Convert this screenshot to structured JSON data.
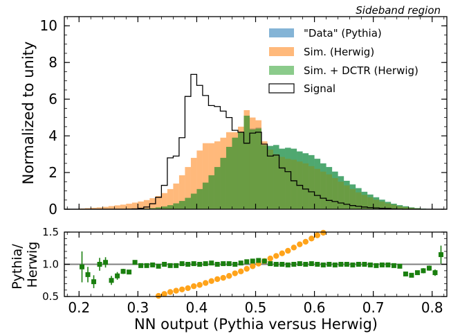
{
  "chart_data": [
    {
      "type": "bar",
      "panel": "main",
      "annotation": "Sideband region",
      "xlabel": "",
      "ylabel": "Normalized to unity",
      "xlim": [
        0.175,
        0.825
      ],
      "ylim": [
        0,
        10.5
      ],
      "bin_width": 0.01,
      "x_ticks": [
        "0.2",
        "0.3",
        "0.4",
        "0.5",
        "0.6",
        "0.7",
        "0.8"
      ],
      "y_ticks": [
        "0",
        "2",
        "4",
        "6",
        "8",
        "10"
      ],
      "legend_position": "top-right",
      "bin_left_edges": [
        0.17,
        0.18,
        0.19,
        0.2,
        0.21,
        0.22,
        0.23,
        0.24,
        0.25,
        0.26,
        0.27,
        0.28,
        0.29,
        0.3,
        0.31,
        0.32,
        0.33,
        0.34,
        0.35,
        0.36,
        0.37,
        0.38,
        0.39,
        0.4,
        0.41,
        0.42,
        0.43,
        0.44,
        0.45,
        0.46,
        0.47,
        0.48,
        0.49,
        0.5,
        0.51,
        0.52,
        0.53,
        0.54,
        0.55,
        0.56,
        0.57,
        0.58,
        0.59,
        0.6,
        0.61,
        0.62,
        0.63,
        0.64,
        0.65,
        0.66,
        0.67,
        0.68,
        0.69,
        0.7,
        0.71,
        0.72,
        0.73,
        0.74,
        0.75,
        0.76,
        0.77,
        0.78,
        0.79,
        0.8,
        0.81
      ],
      "series": [
        {
          "name": "\"Data\" (Pythia)",
          "style": "filled",
          "color": "#1f77b4",
          "values": [
            0,
            0,
            0,
            0,
            0,
            0,
            0,
            0,
            0,
            0,
            0,
            0,
            0.01,
            0.02,
            0.04,
            0.06,
            0.1,
            0.15,
            0.22,
            0.32,
            0.45,
            0.62,
            0.85,
            1.1,
            1.45,
            1.85,
            2.3,
            2.8,
            3.4,
            3.9,
            4.2,
            5.1,
            4.4,
            4.45,
            3.5,
            3.45,
            3.5,
            3.3,
            3.35,
            3.3,
            3.15,
            3.05,
            2.95,
            2.75,
            2.5,
            2.3,
            2.05,
            1.8,
            1.55,
            1.35,
            1.15,
            0.95,
            0.8,
            0.65,
            0.52,
            0.4,
            0.3,
            0.22,
            0.16,
            0.1,
            0.06,
            0.03,
            0.01,
            0,
            0
          ]
        },
        {
          "name": "Sim. (Herwig)",
          "style": "filled",
          "color": "#ff7f0e",
          "values": [
            0,
            0,
            0.02,
            0.04,
            0.06,
            0.08,
            0.1,
            0.13,
            0.17,
            0.21,
            0.25,
            0.3,
            0.36,
            0.42,
            0.5,
            0.6,
            0.72,
            0.88,
            1.1,
            1.4,
            1.85,
            2.3,
            2.8,
            3.2,
            3.6,
            3.6,
            3.7,
            3.9,
            4.2,
            4.2,
            4.5,
            5.4,
            5.0,
            4.85,
            3.7,
            3.25,
            3.0,
            2.85,
            2.75,
            2.7,
            2.6,
            2.5,
            2.35,
            2.2,
            2.05,
            1.9,
            1.7,
            1.5,
            1.3,
            1.1,
            0.92,
            0.78,
            0.65,
            0.52,
            0.42,
            0.32,
            0.24,
            0.17,
            0.12,
            0.08,
            0.05,
            0.02,
            0.01,
            0,
            0
          ]
        },
        {
          "name": "Sim. + DCTR (Herwig)",
          "style": "filled",
          "color": "#2ca02c",
          "values": [
            0,
            0,
            0,
            0,
            0,
            0,
            0,
            0,
            0,
            0,
            0,
            0,
            0.01,
            0.02,
            0.04,
            0.06,
            0.1,
            0.15,
            0.22,
            0.32,
            0.45,
            0.62,
            0.85,
            1.1,
            1.45,
            1.85,
            2.3,
            2.8,
            3.4,
            3.9,
            4.2,
            5.1,
            4.35,
            4.4,
            3.5,
            3.45,
            3.5,
            3.3,
            3.35,
            3.3,
            3.15,
            3.05,
            2.95,
            2.75,
            2.5,
            2.3,
            2.05,
            1.8,
            1.55,
            1.35,
            1.15,
            0.95,
            0.8,
            0.65,
            0.52,
            0.4,
            0.3,
            0.22,
            0.16,
            0.1,
            0.06,
            0.03,
            0.01,
            0,
            0
          ]
        },
        {
          "name": "Signal",
          "style": "step",
          "color": "#000000",
          "values": [
            0,
            0,
            0,
            0,
            0,
            0,
            0,
            0,
            0,
            0,
            0,
            0.01,
            0.02,
            0.05,
            0.12,
            0.3,
            0.65,
            1.3,
            2.8,
            2.9,
            3.9,
            6.15,
            7.35,
            6.75,
            6.2,
            5.65,
            5.6,
            5.35,
            5.0,
            4.3,
            4.2,
            3.6,
            4.15,
            4.2,
            3.55,
            2.9,
            2.95,
            2.25,
            2.05,
            1.55,
            1.3,
            1.1,
            0.95,
            0.75,
            0.6,
            0.48,
            0.42,
            0.34,
            0.27,
            0.2,
            0.16,
            0.12,
            0.09,
            0.07,
            0.05,
            0.04,
            0.02,
            0.01,
            0,
            0,
            0,
            0,
            0,
            0,
            0
          ]
        }
      ]
    },
    {
      "type": "scatter",
      "panel": "ratio",
      "xlabel": "NN output (Pythia versus Herwig)",
      "ylabel": "Pythia/\nHerwig",
      "xlim": [
        0.175,
        0.825
      ],
      "ylim": [
        0.5,
        1.5
      ],
      "reference_line": 1.0,
      "x_ticks": [
        "0.2",
        "0.3",
        "0.4",
        "0.5",
        "0.6",
        "0.7",
        "0.8"
      ],
      "y_ticks": [
        "0.5",
        "1.0",
        "1.5"
      ],
      "series": [
        {
          "name": "",
          "marker": "square",
          "color": "#1a7f0f",
          "points": [
            [
              0.205,
              0.96,
              0.24
            ],
            [
              0.215,
              0.84,
              0.12
            ],
            [
              0.225,
              0.73,
              0.1
            ],
            [
              0.235,
              1.0,
              0.1
            ],
            [
              0.245,
              1.03,
              0.08
            ],
            [
              0.255,
              0.75,
              0.07
            ],
            [
              0.265,
              0.82,
              0.06
            ],
            [
              0.275,
              0.89,
              0.04
            ],
            [
              0.285,
              0.88,
              0.03
            ],
            [
              0.295,
              1.03,
              0.02
            ],
            [
              0.305,
              0.98,
              0.02
            ],
            [
              0.315,
              0.98,
              0.02
            ],
            [
              0.325,
              0.99,
              0.01
            ],
            [
              0.335,
              0.97,
              0.01
            ],
            [
              0.345,
              1.0,
              0.01
            ],
            [
              0.355,
              0.98,
              0.01
            ],
            [
              0.365,
              0.98,
              0.01
            ],
            [
              0.375,
              1.01,
              0.01
            ],
            [
              0.385,
              1.0,
              0.01
            ],
            [
              0.395,
              1.01,
              0.01
            ],
            [
              0.405,
              1.0,
              0.01
            ],
            [
              0.415,
              1.01,
              0.01
            ],
            [
              0.425,
              1.02,
              0.01
            ],
            [
              0.435,
              1.0,
              0.01
            ],
            [
              0.445,
              1.01,
              0.01
            ],
            [
              0.455,
              1.01,
              0.01
            ],
            [
              0.465,
              1.0,
              0.01
            ],
            [
              0.475,
              1.02,
              0.01
            ],
            [
              0.485,
              1.04,
              0.01
            ],
            [
              0.495,
              1.05,
              0.01
            ],
            [
              0.505,
              1.06,
              0.01
            ],
            [
              0.515,
              1.05,
              0.01
            ],
            [
              0.525,
              1.01,
              0.01
            ],
            [
              0.535,
              1.0,
              0.01
            ],
            [
              0.545,
              1.0,
              0.01
            ],
            [
              0.555,
              0.99,
              0.01
            ],
            [
              0.565,
              1.0,
              0.01
            ],
            [
              0.575,
              1.01,
              0.01
            ],
            [
              0.585,
              1.0,
              0.01
            ],
            [
              0.595,
              1.01,
              0.01
            ],
            [
              0.605,
              1.0,
              0.01
            ],
            [
              0.615,
              0.99,
              0.01
            ],
            [
              0.625,
              1.0,
              0.01
            ],
            [
              0.635,
              0.99,
              0.01
            ],
            [
              0.645,
              1.0,
              0.01
            ],
            [
              0.655,
              1.0,
              0.01
            ],
            [
              0.665,
              0.99,
              0.01
            ],
            [
              0.675,
              1.0,
              0.01
            ],
            [
              0.685,
              1.0,
              0.01
            ],
            [
              0.695,
              0.99,
              0.01
            ],
            [
              0.705,
              0.98,
              0.01
            ],
            [
              0.715,
              0.99,
              0.01
            ],
            [
              0.725,
              0.99,
              0.02
            ],
            [
              0.735,
              0.98,
              0.02
            ],
            [
              0.745,
              0.97,
              0.02
            ],
            [
              0.755,
              0.85,
              0.03
            ],
            [
              0.765,
              0.83,
              0.03
            ],
            [
              0.775,
              0.87,
              0.03
            ],
            [
              0.785,
              0.9,
              0.04
            ],
            [
              0.795,
              0.94,
              0.04
            ],
            [
              0.805,
              0.87,
              0.05
            ],
            [
              0.815,
              1.15,
              0.14
            ]
          ]
        },
        {
          "name": "",
          "marker": "circle",
          "color": "#ffa31a",
          "points": [
            [
              0.335,
              0.51
            ],
            [
              0.345,
              0.54
            ],
            [
              0.355,
              0.57
            ],
            [
              0.365,
              0.59
            ],
            [
              0.375,
              0.61
            ],
            [
              0.385,
              0.63
            ],
            [
              0.395,
              0.66
            ],
            [
              0.405,
              0.68
            ],
            [
              0.415,
              0.71
            ],
            [
              0.425,
              0.74
            ],
            [
              0.435,
              0.77
            ],
            [
              0.445,
              0.79
            ],
            [
              0.455,
              0.82
            ],
            [
              0.465,
              0.86
            ],
            [
              0.475,
              0.89
            ],
            [
              0.485,
              0.93
            ],
            [
              0.495,
              0.97
            ],
            [
              0.505,
              1.01
            ],
            [
              0.515,
              1.05
            ],
            [
              0.525,
              1.09
            ],
            [
              0.535,
              1.13
            ],
            [
              0.545,
              1.17
            ],
            [
              0.555,
              1.21
            ],
            [
              0.565,
              1.26
            ],
            [
              0.575,
              1.31
            ],
            [
              0.585,
              1.35
            ],
            [
              0.595,
              1.4
            ],
            [
              0.605,
              1.45
            ],
            [
              0.615,
              1.49
            ]
          ]
        }
      ]
    }
  ]
}
